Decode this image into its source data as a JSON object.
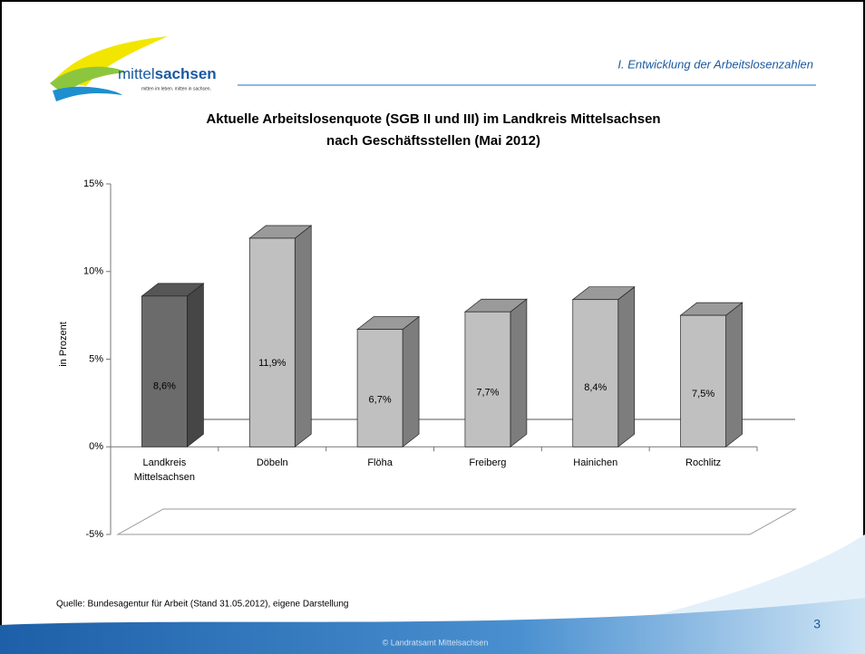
{
  "header": {
    "logo_text_light": "mittel",
    "logo_text_bold": "sachsen",
    "logo_tagline": "mitten im leben. mitten in sachsen.",
    "section": "I. Entwicklung der Arbeitslosenzahlen"
  },
  "chart_data": {
    "type": "bar3d",
    "title": [
      "Aktuelle Arbeitslosenquote (SGB II und III) im Landkreis Mittelsachsen",
      "nach Geschäftsstellen (Mai 2012)"
    ],
    "y_label": "in Prozent",
    "categories": [
      "Landkreis Mittelsachsen",
      "Döbeln",
      "Flöha",
      "Freiberg",
      "Hainichen",
      "Rochlitz"
    ],
    "values": [
      8.6,
      11.9,
      6.7,
      7.7,
      8.4,
      7.5
    ],
    "value_labels": [
      "8,6%",
      "11,9%",
      "6,7%",
      "7,7%",
      "8,4%",
      "7,5%"
    ],
    "colors": [
      "#6b6b6b",
      "#c0c0c0",
      "#c0c0c0",
      "#c0c0c0",
      "#c0c0c0",
      "#c0c0c0"
    ],
    "ylim": [
      -5,
      15
    ],
    "yticks": [
      {
        "value": -5,
        "label": "-5%"
      },
      {
        "value": 0,
        "label": "0%"
      },
      {
        "value": 5,
        "label": "5%"
      },
      {
        "value": 10,
        "label": "10%"
      },
      {
        "value": 15,
        "label": "15%"
      }
    ]
  },
  "footer": {
    "source": "Quelle: Bundesagentur für Arbeit (Stand 31.05.2012), eigene Darstellung",
    "page": "3",
    "copyright": "© Landratsamt Mittelsachsen"
  }
}
